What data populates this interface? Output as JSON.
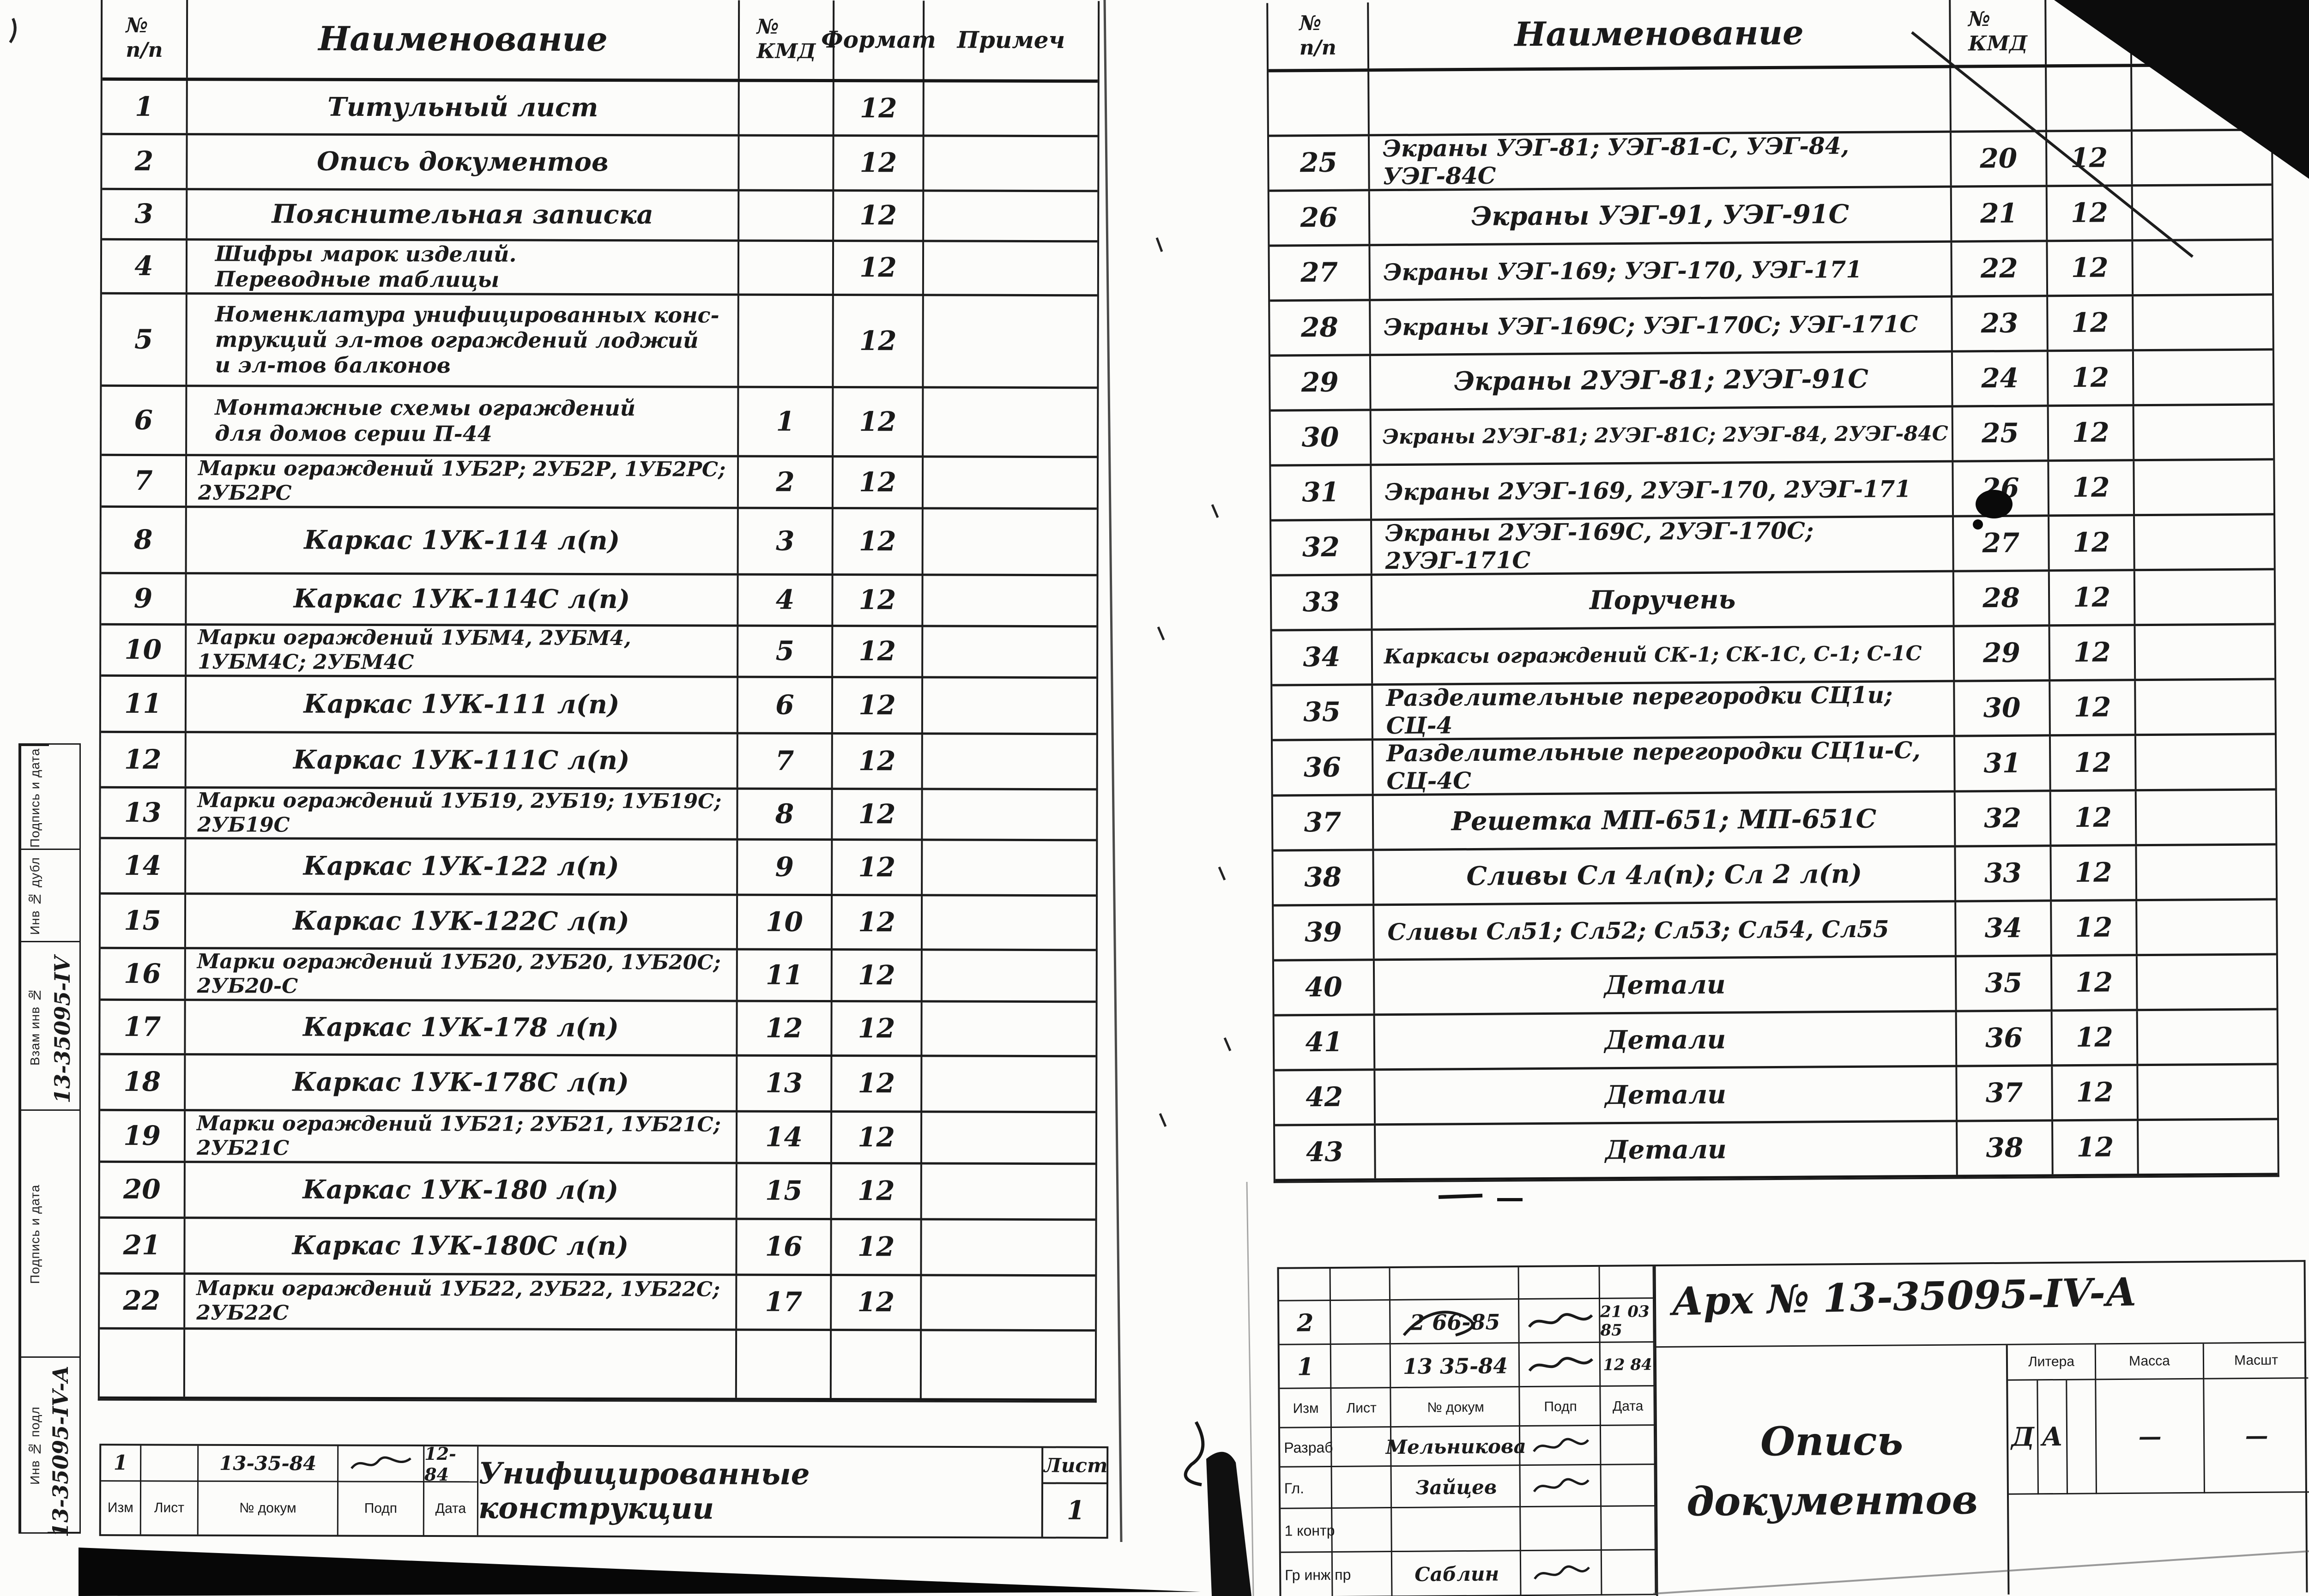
{
  "page": {
    "ink": "#1a1a1a",
    "paper": "#fcfcfa"
  },
  "left_sheet": {
    "table": {
      "headers": {
        "num": "№\nп/п",
        "name": "Наименование",
        "kmd": "№\nКМД",
        "format": "Формат",
        "note": "Примеч"
      },
      "rows": [
        {
          "num": "1",
          "name": "Титульный лист",
          "kmd": "",
          "format": "12",
          "note": ""
        },
        {
          "num": "2",
          "name": "Опись документов",
          "kmd": "",
          "format": "12",
          "note": ""
        },
        {
          "num": "3",
          "name": "Пояснительная записка",
          "kmd": "",
          "format": "12",
          "note": ""
        },
        {
          "num": "4",
          "name": "Шифры марок изделий.\nПереводные таблицы",
          "kmd": "",
          "format": "12",
          "note": ""
        },
        {
          "num": "5",
          "name": "Номенклатура унифицированных конс-\nтрукций эл-тов ограждений лоджий\nи эл-тов балконов",
          "kmd": "",
          "format": "12",
          "note": ""
        },
        {
          "num": "6",
          "name": "Монтажные схемы ограждений\nдля домов серии П-44",
          "kmd": "1",
          "format": "12",
          "note": ""
        },
        {
          "num": "7",
          "name": "Марки ограждений 1УБ2Р; 2УБ2Р, 1УБ2РС; 2УБ2РС",
          "kmd": "2",
          "format": "12",
          "note": ""
        },
        {
          "num": "8",
          "name": "Каркас 1УК-114 л(п)",
          "kmd": "3",
          "format": "12",
          "note": ""
        },
        {
          "num": "9",
          "name": "Каркас 1УК-114С л(п)",
          "kmd": "4",
          "format": "12",
          "note": ""
        },
        {
          "num": "10",
          "name": "Марки ограждений 1УБМ4, 2УБМ4, 1УБМ4С; 2УБМ4С",
          "kmd": "5",
          "format": "12",
          "note": ""
        },
        {
          "num": "11",
          "name": "Каркас 1УК-111 л(п)",
          "kmd": "6",
          "format": "12",
          "note": ""
        },
        {
          "num": "12",
          "name": "Каркас 1УК-111С л(п)",
          "kmd": "7",
          "format": "12",
          "note": ""
        },
        {
          "num": "13",
          "name": "Марки ограждений 1УБ19, 2УБ19; 1УБ19С; 2УБ19С",
          "kmd": "8",
          "format": "12",
          "note": ""
        },
        {
          "num": "14",
          "name": "Каркас 1УК-122 л(п)",
          "kmd": "9",
          "format": "12",
          "note": ""
        },
        {
          "num": "15",
          "name": "Каркас 1УК-122С л(п)",
          "kmd": "10",
          "format": "12",
          "note": ""
        },
        {
          "num": "16",
          "name": "Марки ограждений 1УБ20, 2УБ20, 1УБ20С; 2УБ20-С",
          "kmd": "11",
          "format": "12",
          "note": ""
        },
        {
          "num": "17",
          "name": "Каркас 1УК-178 л(п)",
          "kmd": "12",
          "format": "12",
          "note": ""
        },
        {
          "num": "18",
          "name": "Каркас 1УК-178С л(п)",
          "kmd": "13",
          "format": "12",
          "note": ""
        },
        {
          "num": "19",
          "name": "Марки ограждений 1УБ21; 2УБ21, 1УБ21С; 2УБ21С",
          "kmd": "14",
          "format": "12",
          "note": ""
        },
        {
          "num": "20",
          "name": "Каркас 1УК-180 л(п)",
          "kmd": "15",
          "format": "12",
          "note": ""
        },
        {
          "num": "21",
          "name": "Каркас 1УК-180С л(п)",
          "kmd": "16",
          "format": "12",
          "note": ""
        },
        {
          "num": "22",
          "name": "Марки ограждений 1УБ22, 2УБ22, 1УБ22С; 2УБ22С",
          "kmd": "17",
          "format": "12",
          "note": ""
        },
        {
          "num": "",
          "name": "",
          "kmd": "",
          "format": "",
          "note": ""
        }
      ]
    },
    "rail": {
      "cells": [
        "Подпись и дата",
        "Инв № дубл",
        "Взам инв №",
        "Подпись и дата",
        "Инв № подл"
      ],
      "handwritten_upper": "13-35095-IV",
      "handwritten_lower": "13-35095-IV-А"
    },
    "footer": {
      "revision": {
        "izm": "1",
        "list": "",
        "doc": "13-35-84",
        "date": "12-84"
      },
      "labels": [
        "Изм",
        "Лист",
        "№ докум",
        "Подп",
        "Дата"
      ],
      "title": "Унифицированные конструкции",
      "sheet_label": "Лист",
      "sheet_value": "1"
    }
  },
  "right_sheet": {
    "table": {
      "headers": {
        "num": "№\nп/п",
        "name": "Наименование",
        "kmd": "№\nКМД",
        "format": "",
        "note": ""
      },
      "rows": [
        {
          "num": "",
          "name": "",
          "kmd": "",
          "format": "",
          "note": ""
        },
        {
          "num": "25",
          "name": "Экраны УЭГ-81; УЭГ-81-С, УЭГ-84, УЭГ-84С",
          "kmd": "20",
          "format": "12",
          "note": ""
        },
        {
          "num": "26",
          "name": "Экраны УЭГ-91, УЭГ-91С",
          "kmd": "21",
          "format": "12",
          "note": ""
        },
        {
          "num": "27",
          "name": "Экраны УЭГ-169; УЭГ-170, УЭГ-171",
          "kmd": "22",
          "format": "12",
          "note": ""
        },
        {
          "num": "28",
          "name": "Экраны УЭГ-169С; УЭГ-170С; УЭГ-171С",
          "kmd": "23",
          "format": "12",
          "note": ""
        },
        {
          "num": "29",
          "name": "Экраны 2УЭГ-81; 2УЭГ-91С",
          "kmd": "24",
          "format": "12",
          "note": ""
        },
        {
          "num": "30",
          "name": "Экраны 2УЭГ-81; 2УЭГ-81С; 2УЭГ-84, 2УЭГ-84С",
          "kmd": "25",
          "format": "12",
          "note": ""
        },
        {
          "num": "31",
          "name": "Экраны 2УЭГ-169, 2УЭГ-170, 2УЭГ-171",
          "kmd": "26",
          "format": "12",
          "note": ""
        },
        {
          "num": "32",
          "name": "Экраны 2УЭГ-169С, 2УЭГ-170С; 2УЭГ-171С",
          "kmd": "27",
          "format": "12",
          "note": ""
        },
        {
          "num": "33",
          "name": "Поручень",
          "kmd": "28",
          "format": "12",
          "note": ""
        },
        {
          "num": "34",
          "name": "Каркасы ограждений СК-1; СК-1С, С-1; С-1С",
          "kmd": "29",
          "format": "12",
          "note": ""
        },
        {
          "num": "35",
          "name": "Разделительные перегородки СЦ1и; СЦ-4",
          "kmd": "30",
          "format": "12",
          "note": ""
        },
        {
          "num": "36",
          "name": "Разделительные перегородки СЦ1и-С, СЦ-4С",
          "kmd": "31",
          "format": "12",
          "note": ""
        },
        {
          "num": "37",
          "name": "Решетка МП-651; МП-651С",
          "kmd": "32",
          "format": "12",
          "note": ""
        },
        {
          "num": "38",
          "name": "Сливы Сл 4л(п); Сл 2 л(п)",
          "kmd": "33",
          "format": "12",
          "note": ""
        },
        {
          "num": "39",
          "name": "Сливы Сл51; Сл52; Сл53; Сл54, Сл55",
          "kmd": "34",
          "format": "12",
          "note": ""
        },
        {
          "num": "40",
          "name": "Детали",
          "kmd": "35",
          "format": "12",
          "note": ""
        },
        {
          "num": "41",
          "name": "Детали",
          "kmd": "36",
          "format": "12",
          "note": ""
        },
        {
          "num": "42",
          "name": "Детали",
          "kmd": "37",
          "format": "12",
          "note": ""
        },
        {
          "num": "43",
          "name": "Детали",
          "kmd": "38",
          "format": "12",
          "note": ""
        }
      ]
    },
    "title_block": {
      "arch": "Арх № 13-35095-IV-А",
      "revisions": [
        {
          "izm": "2",
          "list": "",
          "doc": "2 66-85",
          "date": "21 03 85"
        },
        {
          "izm": "1",
          "list": "",
          "doc": "13 35-84",
          "date": "12 84"
        }
      ],
      "labels": [
        "Изм",
        "Лист",
        "№ докум",
        "Подп",
        "Дата"
      ],
      "staff": [
        {
          "role": "Разраб",
          "name": "Мельникова"
        },
        {
          "role": "Гл.",
          "name": "Зайцев"
        },
        {
          "role": "1 контр",
          "name": ""
        },
        {
          "role": "Гр инж пр",
          "name": "Саблин"
        }
      ],
      "title": "Опись документов",
      "litera": {
        "label": "Литера",
        "values": [
          "Д",
          "А",
          ""
        ],
        "mass_label": "Масса",
        "mass": "—",
        "scale_label": "Масшт",
        "scale": "—"
      }
    }
  }
}
